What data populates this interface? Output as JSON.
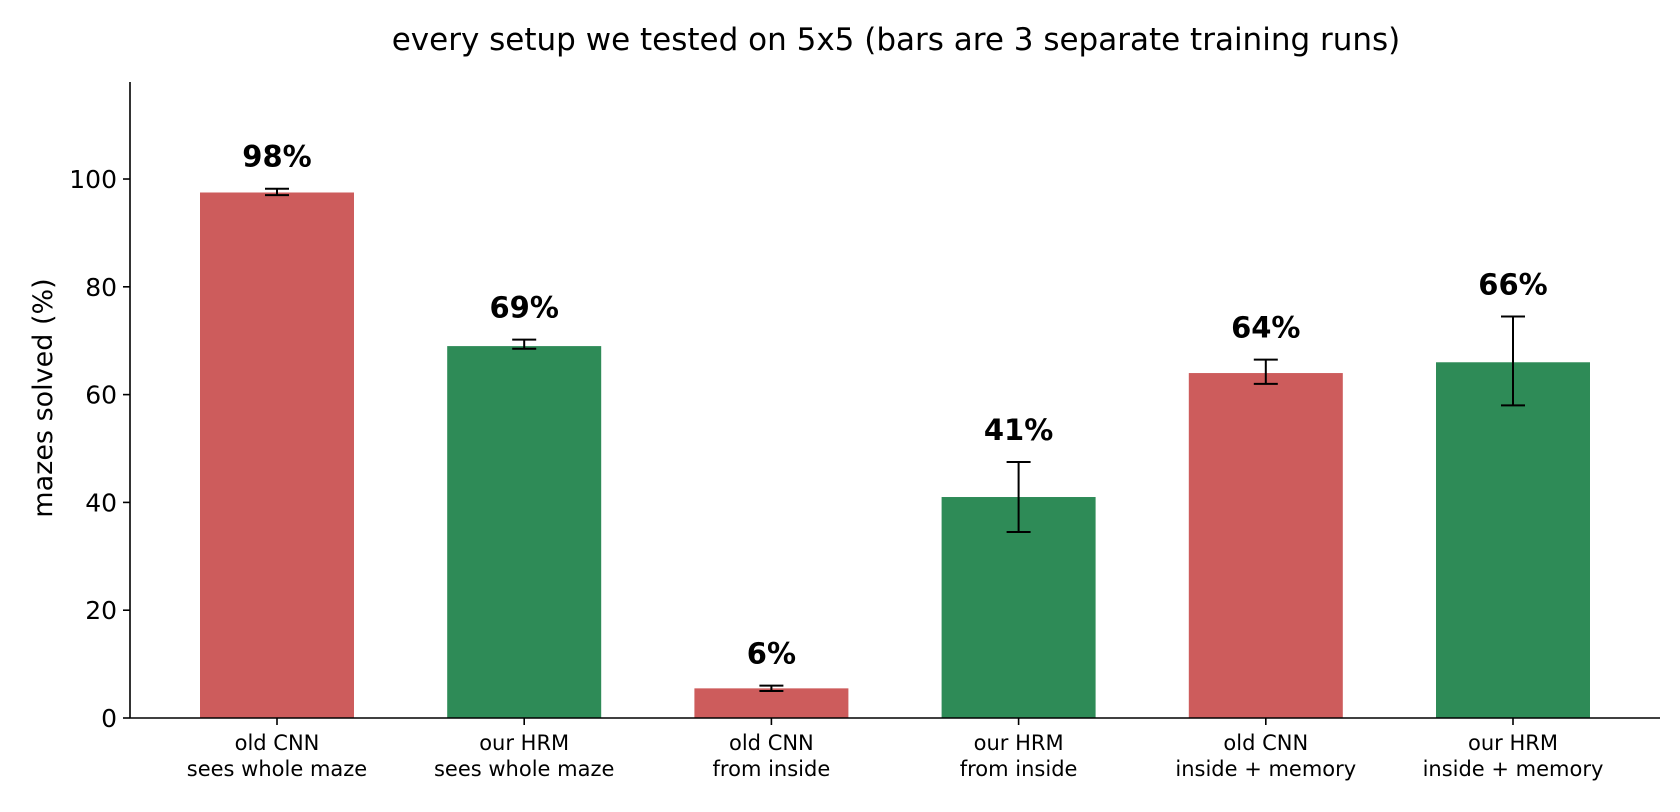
{
  "chart_data": {
    "type": "bar",
    "title": "every setup we tested on 5x5 (bars are 3 separate training runs)",
    "xlabel": "",
    "ylabel": "mazes solved (%)",
    "ylim": [
      0,
      118
    ],
    "yticks": [
      0,
      20,
      40,
      60,
      80,
      100
    ],
    "grid": false,
    "categories": [
      [
        "old CNN",
        "sees whole maze"
      ],
      [
        "our HRM",
        "sees whole maze"
      ],
      [
        "old CNN",
        "from inside"
      ],
      [
        "our HRM",
        "from inside"
      ],
      [
        "old CNN",
        "inside + memory"
      ],
      [
        "our HRM",
        "inside + memory"
      ]
    ],
    "values": [
      97.5,
      69.0,
      5.5,
      41.0,
      64.0,
      66.0
    ],
    "error_low": [
      97.0,
      68.5,
      5.0,
      34.5,
      62.0,
      58.0
    ],
    "error_high": [
      98.2,
      70.2,
      6.0,
      47.5,
      66.5,
      74.5
    ],
    "value_labels": [
      "98%",
      "69%",
      "6%",
      "41%",
      "64%",
      "66%"
    ],
    "bar_colors": [
      "#cd5c5c",
      "#2e8b57",
      "#cd5c5c",
      "#2e8b57",
      "#cd5c5c",
      "#2e8b57"
    ]
  }
}
